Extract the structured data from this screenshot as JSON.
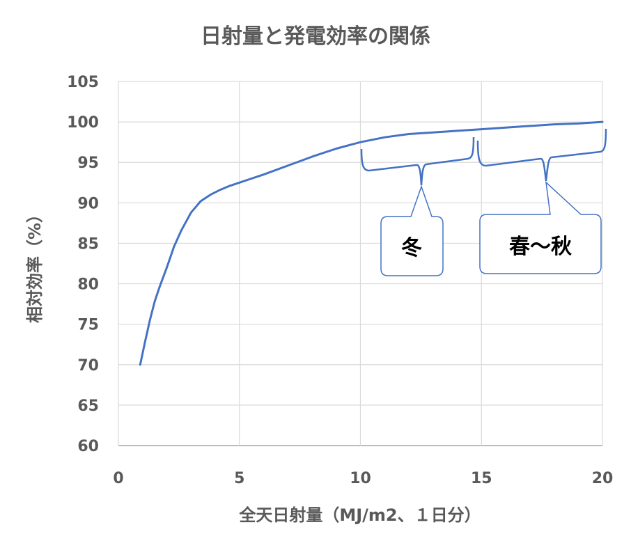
{
  "chart_data": {
    "type": "line",
    "title": "日射量と発電効率の関係",
    "xlabel": "全天日射量（MJ/m2、１日分）",
    "ylabel": "相対効率（%）",
    "xlim": [
      0,
      20
    ],
    "ylim": [
      60,
      105
    ],
    "xticks": [
      0,
      5,
      10,
      15,
      20
    ],
    "yticks": [
      60,
      65,
      70,
      75,
      80,
      85,
      90,
      95,
      100,
      105
    ],
    "xtick_labels": [
      "0",
      "5",
      "10",
      "15",
      "20"
    ],
    "ytick_labels": [
      "60",
      "65",
      "70",
      "75",
      "80",
      "85",
      "90",
      "95",
      "100",
      "105"
    ],
    "grid": true,
    "legend": "none",
    "series": [
      {
        "color": "#4472C4",
        "x": [
          0.9,
          1.1,
          1.3,
          1.5,
          1.7,
          2.0,
          2.3,
          2.6,
          3.0,
          3.4,
          3.8,
          4.2,
          4.6,
          5.0,
          5.5,
          6.0,
          7.0,
          8.0,
          9.0,
          10.0,
          11.0,
          12.0,
          13.0,
          14.0,
          15.0,
          16.0,
          17.0,
          18.0,
          19.0,
          20.0
        ],
        "y": [
          70.0,
          72.8,
          75.5,
          77.8,
          79.6,
          82.0,
          84.6,
          86.6,
          88.8,
          90.2,
          91.0,
          91.6,
          92.1,
          92.5,
          93.0,
          93.5,
          94.6,
          95.7,
          96.7,
          97.5,
          98.1,
          98.5,
          98.7,
          98.9,
          99.1,
          99.3,
          99.5,
          99.7,
          99.8,
          100.0
        ]
      }
    ],
    "annotations": [
      {
        "label": "冬",
        "brace_x_range": [
          10.0,
          14.8
        ]
      },
      {
        "label": "春～秋",
        "brace_x_range": [
          14.8,
          20.0
        ]
      }
    ]
  },
  "colors": {
    "line": "#4472C4",
    "grid": "#D9D9D9",
    "axis": "#A6A6A6",
    "text": "#595959",
    "callout_border": "#4472C4"
  }
}
